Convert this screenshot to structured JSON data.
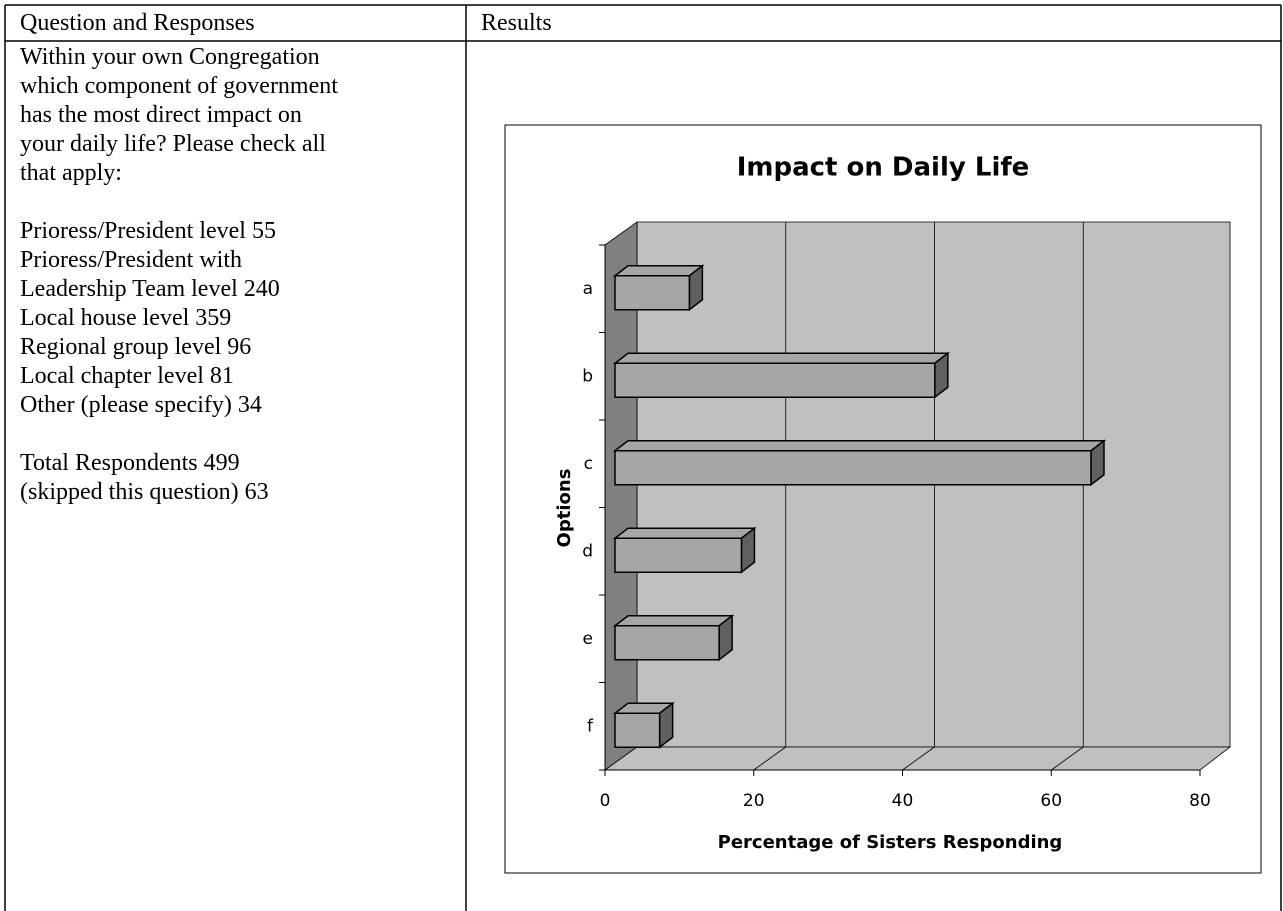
{
  "table": {
    "headers": [
      "Question and Responses",
      "Results"
    ]
  },
  "question": {
    "lines": [
      "Within your own Congregation",
      "which component of government",
      "has the most direct impact on",
      "your daily life? Please check all",
      "that apply:"
    ]
  },
  "responses": {
    "lines": [
      "Prioress/President level 55",
      "Prioress/President with",
      "Leadership Team level 240",
      "Local house level 359",
      "Regional group level 96",
      "Local chapter level 81",
      "Other (please specify) 34"
    ]
  },
  "totals": {
    "lines": [
      "Total Respondents 499",
      "(skipped this question) 63"
    ]
  },
  "chart_data": {
    "type": "bar",
    "orientation": "horizontal",
    "title": "Impact on Daily Life",
    "x_label": "Percentage of Sisters Responding",
    "y_label": "Options",
    "categories": [
      "a",
      "b",
      "c",
      "d",
      "e",
      "f"
    ],
    "values": [
      10,
      43,
      64,
      17,
      14,
      6
    ],
    "color": "#a6a6a6",
    "xlim": [
      0,
      80
    ],
    "xticks": [
      0,
      20,
      40,
      60,
      80
    ],
    "grid": true
  }
}
